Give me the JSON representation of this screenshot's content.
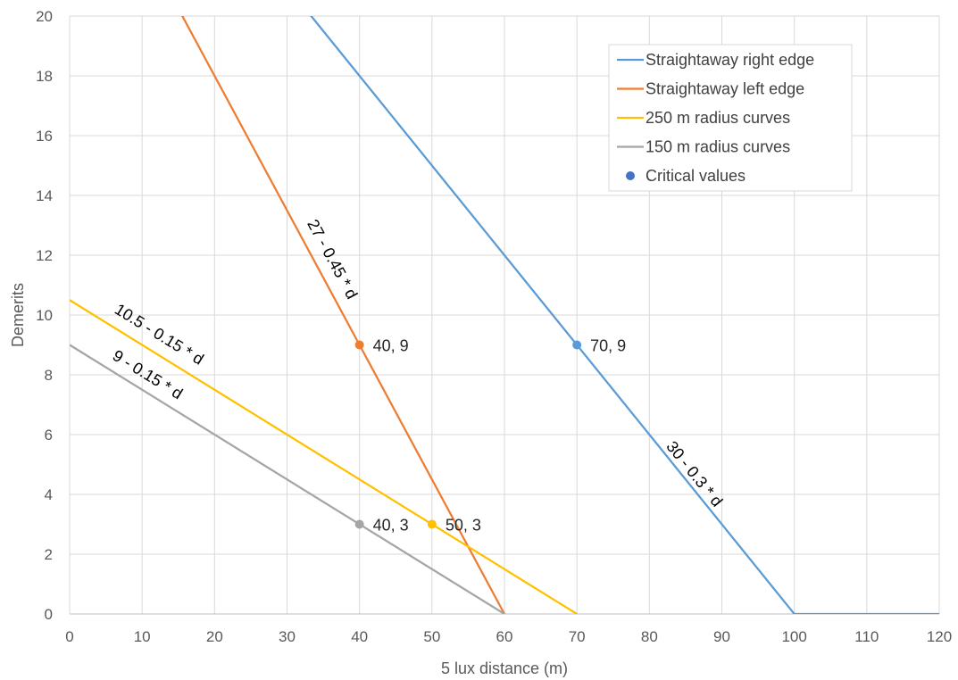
{
  "chart_data": {
    "type": "line",
    "xlabel": "5 lux distance (m)",
    "ylabel": "Demerits",
    "xlim": [
      0,
      120
    ],
    "ylim": [
      0,
      20
    ],
    "xticks": [
      0,
      10,
      20,
      30,
      40,
      50,
      60,
      70,
      80,
      90,
      100,
      110,
      120
    ],
    "yticks": [
      0,
      2,
      4,
      6,
      8,
      10,
      12,
      14,
      16,
      18,
      20
    ],
    "grid": true,
    "legend_position": "top-right",
    "series": [
      {
        "name": "Straightaway right edge",
        "color": "#5B9BD5",
        "x": [
          0,
          100,
          120
        ],
        "y": [
          30,
          0,
          0
        ]
      },
      {
        "name": "Straightaway left edge",
        "color": "#ED7D31",
        "x": [
          0,
          60
        ],
        "y": [
          27,
          0
        ]
      },
      {
        "name": "250 m radius curves",
        "color": "#FFC000",
        "x": [
          0,
          70
        ],
        "y": [
          10.5,
          0
        ]
      },
      {
        "name": "150 m radius curves",
        "color": "#A5A5A5",
        "x": [
          0,
          60
        ],
        "y": [
          9,
          0
        ]
      }
    ],
    "points": {
      "name": "Critical values",
      "legend_color": "#4472C4",
      "items": [
        {
          "x": 70,
          "y": 9,
          "label": "70, 9",
          "color": "#5B9BD5"
        },
        {
          "x": 40,
          "y": 9,
          "label": "40, 9",
          "color": "#ED7D31"
        },
        {
          "x": 50,
          "y": 3,
          "label": "50, 3",
          "color": "#FFC000"
        },
        {
          "x": 40,
          "y": 3,
          "label": "40, 3",
          "color": "#A5A5A5"
        }
      ]
    },
    "annotations": [
      {
        "text": "30 - 0.3 * d",
        "series": 0
      },
      {
        "text": "27 - 0.45 * d",
        "series": 1
      },
      {
        "text": "10.5 - 0.15 * d",
        "series": 2
      },
      {
        "text": "9 - 0.15 * d",
        "series": 3
      }
    ]
  }
}
